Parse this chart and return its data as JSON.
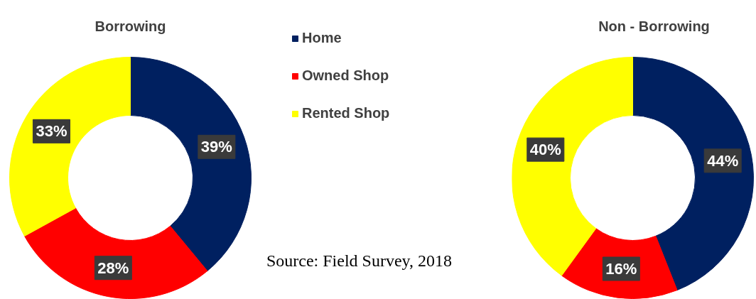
{
  "chart_data": [
    {
      "type": "donut",
      "title": "Borrowing",
      "categories": [
        "Home",
        "Owned Shop",
        "Rented Shop"
      ],
      "values": [
        39,
        28,
        33
      ],
      "colors": [
        "#002060",
        "#ff0000",
        "#ffff00"
      ],
      "value_labels": [
        "39%",
        "28%",
        "33%"
      ],
      "legend": "right",
      "annotations": [
        "Source: Field Survey, 2018"
      ]
    },
    {
      "type": "donut",
      "title": "Non - Borrowing",
      "categories": [
        null,
        null,
        null
      ],
      "values": [
        44,
        16,
        40
      ],
      "colors": [
        "#002060",
        "#ff0000",
        "#ffff00"
      ],
      "value_labels": [
        "44%",
        "16%",
        "40%"
      ]
    }
  ]
}
